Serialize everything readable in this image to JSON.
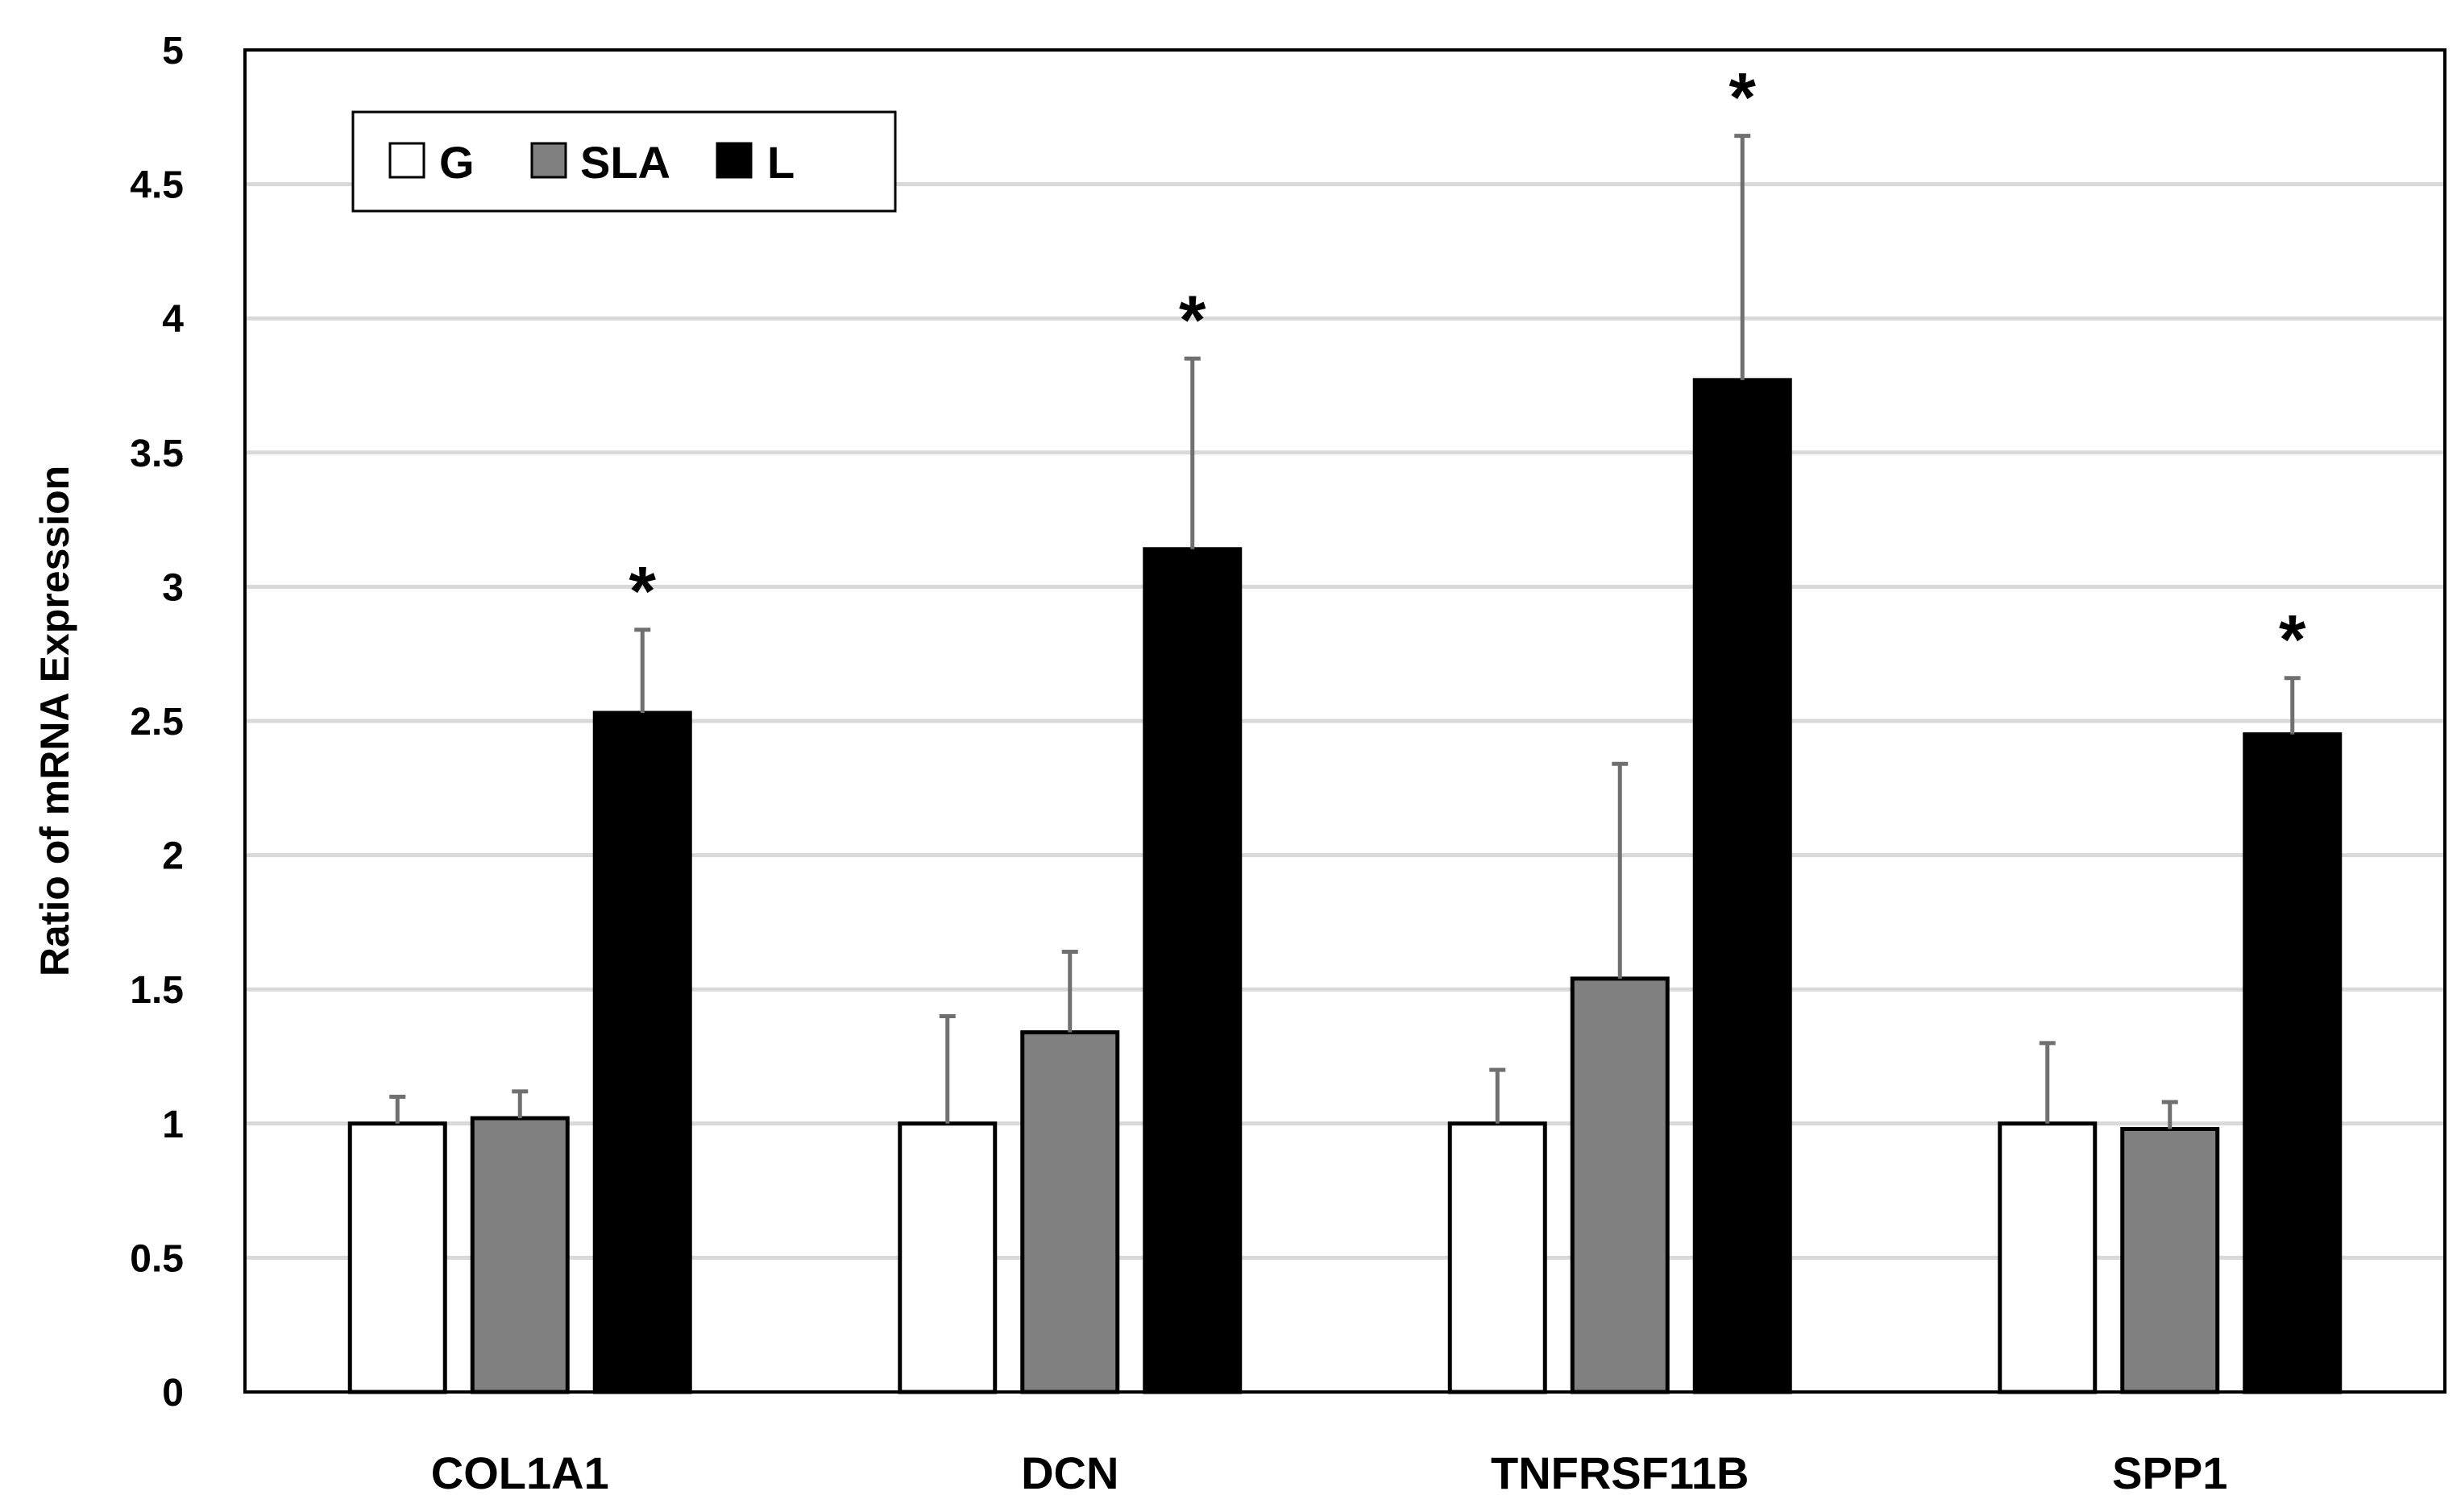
{
  "chart_data": {
    "type": "bar",
    "title": "",
    "xlabel": "",
    "ylabel": "Ratio of mRNA Expression",
    "ylim": [
      0,
      5
    ],
    "yticks": [
      "0",
      "0.5",
      "1",
      "1.5",
      "2",
      "2.5",
      "3",
      "3.5",
      "4",
      "4.5",
      "5"
    ],
    "grid": true,
    "legend_position": "top-left",
    "categories": [
      "COL1A1",
      "DCN",
      "TNFRSF11B",
      "SPP1"
    ],
    "series": [
      {
        "name": "G",
        "color": "#ffffff",
        "values": [
          1.0,
          1.0,
          1.0,
          1.0
        ],
        "errors": [
          0.1,
          0.4,
          0.2,
          0.3
        ]
      },
      {
        "name": "SLA",
        "color": "#808080",
        "values": [
          1.02,
          1.34,
          1.54,
          0.98
        ],
        "errors": [
          0.1,
          0.3,
          0.8,
          0.1
        ]
      },
      {
        "name": "L",
        "color": "#000000",
        "values": [
          2.53,
          3.14,
          3.77,
          2.45
        ],
        "errors": [
          0.31,
          0.71,
          0.91,
          0.21
        ]
      }
    ],
    "significance_marker": "*",
    "significant": [
      [
        false,
        false,
        true
      ],
      [
        false,
        false,
        true
      ],
      [
        false,
        false,
        true
      ],
      [
        false,
        false,
        true
      ]
    ]
  }
}
